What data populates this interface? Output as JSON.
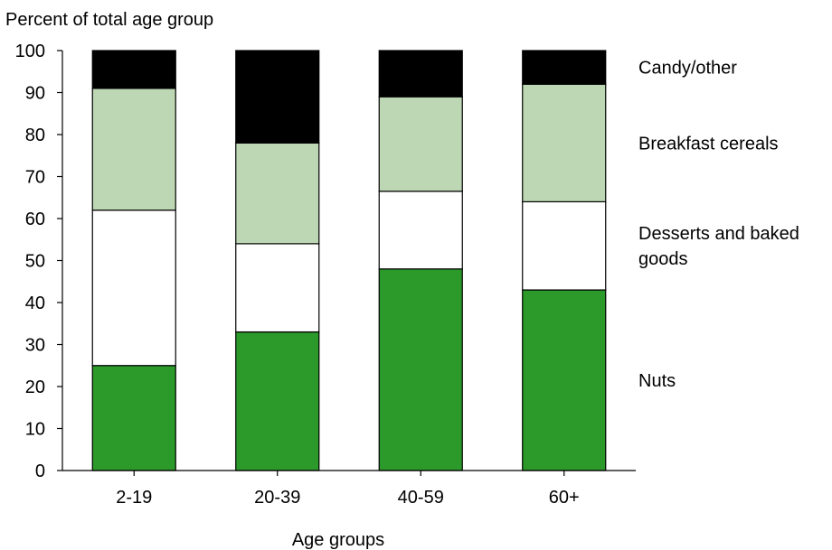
{
  "chart_data": {
    "type": "bar",
    "stacked": true,
    "title": "",
    "ylabel": "Percent of total age group",
    "xlabel": "Age groups",
    "ylim": [
      0,
      100
    ],
    "yticks": [
      0,
      10,
      20,
      30,
      40,
      50,
      60,
      70,
      80,
      90,
      100
    ],
    "grid": false,
    "legend_placement": "right",
    "categories": [
      "2-19",
      "20-39",
      "40-59",
      "60+"
    ],
    "series": [
      {
        "name": "Nuts",
        "color": "#2c9a2a",
        "values": [
          25,
          33,
          48,
          43
        ]
      },
      {
        "name": "Desserts and baked goods",
        "label_lines": [
          "Desserts and baked",
          "goods"
        ],
        "color": "#ffffff",
        "values": [
          37,
          21,
          18.5,
          21
        ]
      },
      {
        "name": "Breakfast cereals",
        "color": "#bdd7b4",
        "values": [
          29,
          24,
          22.5,
          28
        ]
      },
      {
        "name": "Candy/other",
        "color": "#000000",
        "values": [
          9,
          22,
          11,
          8
        ]
      }
    ]
  }
}
